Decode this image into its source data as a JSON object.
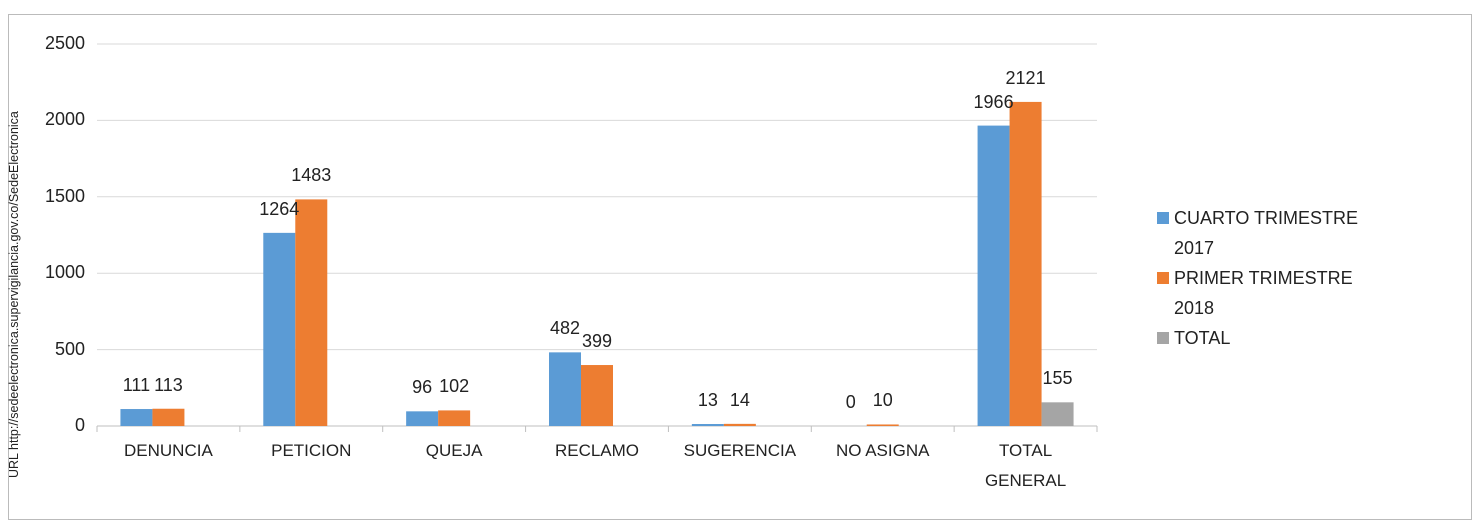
{
  "chart_data": {
    "type": "bar",
    "annotation": "URL http://sedeelectronica.supervigilancia.gov.co/SedeElectronica",
    "categories": [
      "DENUNCIA",
      "PETICION",
      "QUEJA",
      "RECLAMO",
      "SUGERENCIA",
      "NO ASIGNA",
      "TOTAL GENERAL"
    ],
    "series": [
      {
        "name": "CUARTO TRIMESTRE 2017",
        "color": "#5b9bd5",
        "values": [
          111,
          1264,
          96,
          482,
          13,
          0,
          1966
        ]
      },
      {
        "name": "PRIMER TRIMESTRE 2018",
        "color": "#ed7d31",
        "values": [
          113,
          1483,
          102,
          399,
          14,
          10,
          2121
        ]
      },
      {
        "name": "TOTAL",
        "color": "#a5a5a5",
        "values": [
          null,
          null,
          null,
          null,
          null,
          null,
          155
        ]
      }
    ],
    "ylim": [
      0,
      2500
    ],
    "yticks": [
      0,
      500,
      1000,
      1500,
      2000,
      2500
    ],
    "grid": true,
    "legend": "right"
  }
}
